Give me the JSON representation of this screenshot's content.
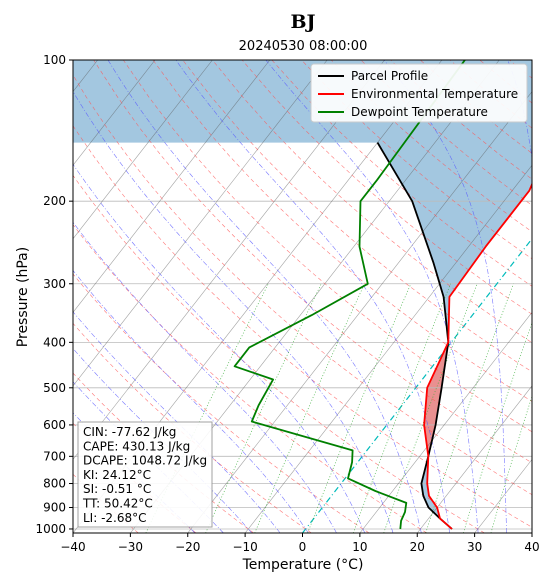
{
  "chart_data": {
    "type": "line",
    "title": "BJ",
    "subtitle": "20240530  08:00:00",
    "xlabel": "Temperature (°C)",
    "ylabel": "Pressure (hPa)",
    "xlim": [
      -40,
      40
    ],
    "ylim": [
      1020,
      100
    ],
    "y_scale": "log",
    "x_ticks": [
      -40,
      -30,
      -20,
      -10,
      0,
      10,
      20,
      30,
      40
    ],
    "y_ticks": [
      100,
      200,
      300,
      400,
      500,
      600,
      700,
      800,
      900,
      1000
    ],
    "legend_position": "top-right",
    "series": [
      {
        "name": "Parcel Profile",
        "color": "#000000",
        "points": [
          [
            25.5,
            1000
          ],
          [
            22.0,
            950
          ],
          [
            18.5,
            900
          ],
          [
            16.0,
            850
          ],
          [
            14.0,
            800
          ],
          [
            11.5,
            700
          ],
          [
            8.5,
            600
          ],
          [
            4.5,
            500
          ],
          [
            -0.5,
            400
          ],
          [
            -7.5,
            320
          ],
          [
            -14.0,
            270
          ],
          [
            -26.0,
            200
          ],
          [
            -40.0,
            150
          ]
        ]
      },
      {
        "name": "Environmental Temperature",
        "color": "#ff0000",
        "points": [
          [
            25.5,
            1000
          ],
          [
            22.0,
            950
          ],
          [
            20.0,
            900
          ],
          [
            17.0,
            850
          ],
          [
            15.0,
            800
          ],
          [
            11.5,
            700
          ],
          [
            6.5,
            600
          ],
          [
            2.0,
            500
          ],
          [
            -0.5,
            400
          ],
          [
            -6.5,
            320
          ],
          [
            -7.0,
            250
          ],
          [
            -7.0,
            190
          ],
          [
            -15.0,
            100
          ]
        ]
      },
      {
        "name": "Dewpoint Temperature",
        "color": "#008000",
        "points": [
          [
            16.5,
            1000
          ],
          [
            15.5,
            960
          ],
          [
            15.0,
            920
          ],
          [
            14.0,
            880
          ],
          [
            7.0,
            830
          ],
          [
            0.5,
            780
          ],
          [
            -1.0,
            720
          ],
          [
            -2.5,
            680
          ],
          [
            -24.0,
            590
          ],
          [
            -25.0,
            545
          ],
          [
            -26.0,
            480
          ],
          [
            -34.5,
            450
          ],
          [
            -34.5,
            410
          ],
          [
            -28.0,
            350
          ],
          [
            -22.5,
            300
          ],
          [
            -29.0,
            250
          ],
          [
            -35.0,
            200
          ],
          [
            -35.0,
            180
          ],
          [
            -36.0,
            100
          ]
        ]
      }
    ],
    "shading": [
      {
        "name": "CIN",
        "color": "#9ec4de"
      },
      {
        "name": "CAPE",
        "color": "#e88a8a"
      }
    ],
    "indices": [
      "CIN: -77.62 J/kg",
      "CAPE: 430.13 J/kg",
      "DCAPE: 1048.72 J/kg",
      "KI: 24.12°C",
      "SI: -0.51 °C",
      "TT: 50.42°C",
      "LI: -2.68°C"
    ],
    "background_lines": {
      "isotherms": "#555555",
      "dry_adiabats": "#ff5555",
      "moist_adiabats": "#5555ff",
      "mixing_ratio": "#33aa33",
      "zero_isotherm": "#00bbbb"
    }
  }
}
